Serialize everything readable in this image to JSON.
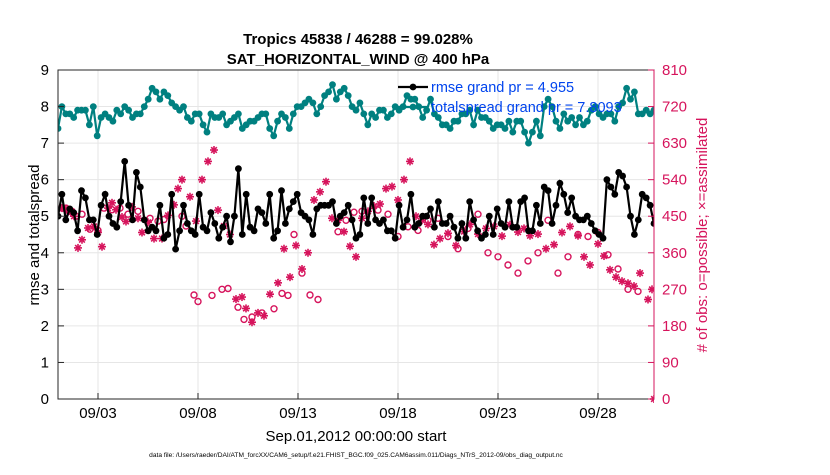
{
  "chart_data": {
    "type": "line",
    "title_line1": "Tropics 45838 / 46288 = 99.028%",
    "title_line2": "SAT_HORIZONTAL_WIND @ 400 hPa",
    "xlabel": "Sep.01,2012 00:00:00 start",
    "ylabel": "rmse and totalspread",
    "ylabel_right": "# of obs: o=possible; ×=assimilated",
    "footer": "data file: /Users/raeder/DAI/ATM_forcXX/CAM6_setup/f.e21.FHIST_BGC.f09_025.CAM6assim.011/Diags_NTrS_2012-09/obs_diag_output.nc",
    "xlim": [
      1.0,
      30.8
    ],
    "ylim": [
      0,
      9
    ],
    "ylim_right": [
      0,
      810
    ],
    "x_ticks": [
      3,
      8,
      13,
      18,
      23,
      28
    ],
    "x_tick_labels": [
      "09/03",
      "09/08",
      "09/13",
      "09/18",
      "09/23",
      "09/28"
    ],
    "y_ticks": [
      0,
      1,
      2,
      3,
      4,
      5,
      6,
      7,
      8,
      9
    ],
    "y_ticks_right": [
      0,
      90,
      180,
      270,
      360,
      450,
      540,
      630,
      720,
      810
    ],
    "grid": true,
    "legend_position": "top-right",
    "colors": {
      "rmse": "#000000",
      "spread": "#008080",
      "obs": "#d6145c",
      "legend_text": "#0044ee"
    },
    "series": [
      {
        "name": "rmse grand pr = 4.955",
        "role": "rmse",
        "axis": "left",
        "values": [
          5.0,
          5.6,
          4.9,
          5.2,
          5.1,
          4.6,
          5.7,
          5.5,
          4.9,
          4.9,
          4.5,
          5.3,
          5.6,
          5.0,
          4.8,
          4.7,
          5.4,
          6.5,
          5.3,
          4.9,
          6.2,
          5.8,
          4.9,
          4.6,
          4.7,
          4.6,
          5.3,
          4.4,
          4.5,
          5.6,
          4.1,
          4.6,
          5.3,
          4.8,
          4.6,
          4.5,
          5.6,
          4.7,
          4.6,
          5.1,
          4.8,
          4.4,
          4.7,
          5.0,
          4.3,
          5.0,
          6.3,
          4.5,
          5.6,
          4.7,
          4.6,
          5.2,
          5.1,
          4.8,
          5.6,
          4.4,
          4.6,
          5.7,
          4.8,
          5.2,
          5.4,
          5.6,
          5.1,
          5.0,
          4.9,
          4.5,
          5.2,
          5.3,
          5.3,
          5.3,
          5.4,
          4.8,
          5.0,
          5.1,
          5.3,
          4.9,
          4.4,
          4.5,
          5.5,
          4.8,
          5.5,
          4.9,
          4.8,
          4.9,
          4.6,
          4.6,
          4.4,
          5.3,
          4.7,
          4.9,
          5.6,
          4.7,
          4.8,
          5.0,
          5.0,
          5.2,
          4.7,
          5.4,
          4.8,
          4.8,
          5.0,
          4.7,
          4.4,
          4.8,
          4.4,
          5.4,
          4.9,
          4.6,
          4.4,
          4.5,
          5.0,
          4.5,
          5.2,
          4.8,
          4.7,
          5.4,
          4.7,
          4.7,
          5.4,
          5.5,
          4.6,
          4.6,
          5.3,
          4.8,
          5.8,
          5.7,
          4.8,
          5.3,
          5.9,
          5.6,
          5.1,
          5.5,
          5.0,
          4.9,
          4.9,
          5.0,
          4.8,
          4.6,
          4.5,
          4.4,
          6.0,
          5.8,
          5.6,
          6.2,
          6.1,
          5.8,
          5.0,
          4.5,
          4.9,
          5.6,
          5.5,
          5.3,
          4.8
        ]
      },
      {
        "name": "totalspread grand pr = 7.8093",
        "role": "spread",
        "axis": "left",
        "values": [
          7.4,
          8.0,
          7.8,
          7.8,
          7.7,
          7.9,
          7.9,
          7.9,
          7.5,
          8.0,
          7.2,
          7.7,
          7.8,
          7.7,
          7.6,
          7.9,
          7.8,
          8.0,
          7.9,
          7.7,
          7.8,
          7.8,
          8.0,
          8.2,
          8.5,
          8.4,
          8.2,
          8.4,
          8.3,
          8.1,
          8.0,
          7.9,
          8.0,
          7.7,
          7.6,
          7.8,
          7.8,
          7.5,
          7.3,
          7.8,
          7.7,
          7.7,
          7.8,
          7.5,
          7.6,
          7.7,
          7.8,
          7.4,
          7.5,
          7.6,
          7.6,
          7.7,
          7.8,
          7.8,
          7.4,
          7.2,
          7.6,
          7.8,
          7.7,
          7.4,
          7.8,
          8.0,
          8.0,
          8.1,
          8.2,
          8.1,
          7.8,
          8.0,
          8.3,
          8.4,
          8.6,
          8.2,
          8.4,
          8.5,
          8.3,
          8.0,
          7.9,
          8.1,
          7.8,
          7.5,
          7.8,
          7.7,
          7.9,
          7.9,
          7.7,
          7.8,
          8.0,
          7.9,
          8.0,
          8.3,
          8.2,
          8.2,
          8.0,
          7.7,
          7.9,
          8.2,
          7.8,
          7.7,
          7.5,
          7.5,
          7.4,
          7.6,
          7.6,
          7.8,
          7.8,
          7.9,
          7.5,
          7.9,
          7.7,
          7.7,
          7.6,
          7.4,
          7.5,
          7.5,
          7.4,
          7.6,
          7.3,
          7.6,
          7.6,
          7.3,
          7.0,
          7.3,
          7.6,
          7.2,
          8.0,
          8.2,
          8.0,
          7.6,
          7.4,
          7.8,
          7.6,
          7.7,
          7.5,
          7.7,
          7.5,
          7.6,
          7.9,
          8.0,
          7.8,
          7.7,
          7.8,
          7.8,
          7.6,
          8.0,
          8.1,
          8.5,
          8.2,
          8.4,
          7.8,
          7.8,
          7.9,
          7.8,
          7.9
        ]
      },
      {
        "name": "# of obs possible",
        "role": "obs_possible",
        "axis": "right",
        "points": [
          [
            1.2,
            470
          ],
          [
            1.4,
            470
          ],
          [
            1.55,
            462
          ],
          [
            1.7,
            462
          ],
          [
            1.9,
            450
          ],
          [
            2.2,
            455
          ],
          [
            2.6,
            418
          ],
          [
            3.0,
            415
          ],
          [
            3.3,
            470
          ],
          [
            3.7,
            466
          ],
          [
            4.1,
            470
          ],
          [
            4.5,
            455
          ],
          [
            5.0,
            462
          ],
          [
            5.6,
            445
          ],
          [
            6.0,
            438
          ],
          [
            6.3,
            442
          ],
          [
            7.2,
            450
          ],
          [
            7.4,
            426
          ],
          [
            7.8,
            256
          ],
          [
            8.0,
            240
          ],
          [
            8.7,
            255
          ],
          [
            9.2,
            270
          ],
          [
            9.5,
            272
          ],
          [
            10.0,
            226
          ],
          [
            10.3,
            196
          ],
          [
            10.7,
            202
          ],
          [
            11.2,
            212
          ],
          [
            11.8,
            222
          ],
          [
            12.2,
            260
          ],
          [
            12.5,
            255
          ],
          [
            12.8,
            405
          ],
          [
            13.2,
            310
          ],
          [
            13.6,
            256
          ],
          [
            14.0,
            245
          ],
          [
            15.0,
            412
          ],
          [
            15.4,
            440
          ],
          [
            15.8,
            460
          ],
          [
            16.2,
            462
          ],
          [
            17.0,
            465
          ],
          [
            17.5,
            455
          ],
          [
            18.0,
            400
          ],
          [
            18.5,
            424
          ],
          [
            19.0,
            415
          ],
          [
            19.5,
            440
          ],
          [
            20.0,
            445
          ],
          [
            20.5,
            400
          ],
          [
            21.0,
            370
          ],
          [
            21.5,
            420
          ],
          [
            22.0,
            455
          ],
          [
            22.5,
            360
          ],
          [
            23.0,
            350
          ],
          [
            23.5,
            330
          ],
          [
            24.0,
            310
          ],
          [
            24.5,
            340
          ],
          [
            25.0,
            360
          ],
          [
            25.5,
            440
          ],
          [
            26.0,
            310
          ],
          [
            26.5,
            350
          ],
          [
            27.0,
            405
          ],
          [
            27.5,
            400
          ],
          [
            28.0,
            410
          ],
          [
            28.5,
            355
          ],
          [
            29.0,
            320
          ],
          [
            29.5,
            270
          ],
          [
            30.0,
            265
          ]
        ]
      },
      {
        "name": "# of obs assimilated",
        "role": "obs_assimilated",
        "axis": "right",
        "points": [
          [
            1.2,
            470
          ],
          [
            1.4,
            468
          ],
          [
            1.5,
            465
          ],
          [
            1.65,
            460
          ],
          [
            1.8,
            450
          ],
          [
            2.0,
            372
          ],
          [
            2.2,
            392
          ],
          [
            2.5,
            421
          ],
          [
            2.8,
            425
          ],
          [
            3.0,
            410
          ],
          [
            3.2,
            375
          ],
          [
            3.5,
            470
          ],
          [
            3.7,
            483
          ],
          [
            3.9,
            466
          ],
          [
            4.2,
            448
          ],
          [
            4.4,
            437
          ],
          [
            4.7,
            473
          ],
          [
            5.0,
            445
          ],
          [
            5.2,
            410
          ],
          [
            5.5,
            435
          ],
          [
            5.8,
            395
          ],
          [
            6.2,
            395
          ],
          [
            6.5,
            452
          ],
          [
            6.8,
            478
          ],
          [
            7.0,
            518
          ],
          [
            7.2,
            540
          ],
          [
            7.6,
            498
          ],
          [
            7.9,
            438
          ],
          [
            8.2,
            540
          ],
          [
            8.5,
            585
          ],
          [
            8.8,
            613
          ],
          [
            9.0,
            465
          ],
          [
            9.3,
            426
          ],
          [
            9.6,
            405
          ],
          [
            9.9,
            246
          ],
          [
            10.2,
            251
          ],
          [
            10.4,
            223
          ],
          [
            10.7,
            189
          ],
          [
            11.0,
            212
          ],
          [
            11.3,
            205
          ],
          [
            11.6,
            258
          ],
          [
            12.0,
            286
          ],
          [
            12.3,
            370
          ],
          [
            12.6,
            300
          ],
          [
            12.9,
            378
          ],
          [
            13.2,
            320
          ],
          [
            13.5,
            360
          ],
          [
            13.8,
            490
          ],
          [
            14.1,
            510
          ],
          [
            14.4,
            535
          ],
          [
            14.7,
            445
          ],
          [
            15.0,
            440
          ],
          [
            15.3,
            412
          ],
          [
            15.6,
            376
          ],
          [
            15.9,
            350
          ],
          [
            16.2,
            445
          ],
          [
            16.5,
            462
          ],
          [
            16.8,
            475
          ],
          [
            17.1,
            480
          ],
          [
            17.4,
            518
          ],
          [
            17.7,
            523
          ],
          [
            18.0,
            490
          ],
          [
            18.3,
            540
          ],
          [
            18.6,
            585
          ],
          [
            18.9,
            450
          ],
          [
            19.2,
            440
          ],
          [
            19.5,
            430
          ],
          [
            19.8,
            380
          ],
          [
            20.1,
            395
          ],
          [
            20.5,
            408
          ],
          [
            20.9,
            378
          ],
          [
            21.3,
            412
          ],
          [
            21.6,
            430
          ],
          [
            22.0,
            406
          ],
          [
            22.4,
            420
          ],
          [
            22.8,
            425
          ],
          [
            23.2,
            401
          ],
          [
            23.6,
            429
          ],
          [
            24.0,
            411
          ],
          [
            24.3,
            420
          ],
          [
            24.6,
            402
          ],
          [
            25.0,
            406
          ],
          [
            25.4,
            370
          ],
          [
            25.8,
            380
          ],
          [
            26.2,
            410
          ],
          [
            26.6,
            425
          ],
          [
            27.0,
            402
          ],
          [
            27.3,
            350
          ],
          [
            27.6,
            330
          ],
          [
            28.0,
            382
          ],
          [
            28.3,
            352
          ],
          [
            28.6,
            318
          ],
          [
            28.9,
            300
          ],
          [
            29.2,
            290
          ],
          [
            29.5,
            285
          ],
          [
            29.8,
            278
          ],
          [
            30.1,
            310
          ],
          [
            30.5,
            245
          ],
          [
            30.7,
            270
          ],
          [
            30.8,
            0
          ]
        ]
      }
    ]
  }
}
